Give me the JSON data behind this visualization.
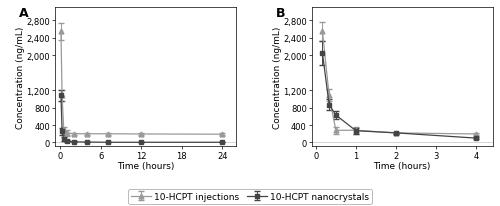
{
  "panel_A_label": "A",
  "panel_B_label": "B",
  "xlabel": "Time (hours)",
  "ylabel": "Concentration (ng/mL)",
  "inj_x_A": [
    0.083,
    0.25,
    0.5,
    1,
    2,
    4,
    7,
    12,
    24
  ],
  "inj_y_A": [
    2550,
    1080,
    280,
    220,
    200,
    200,
    200,
    195,
    190
  ],
  "inj_ye_A": [
    200,
    120,
    80,
    60,
    25,
    25,
    25,
    20,
    20
  ],
  "nano_x_A": [
    0.083,
    0.25,
    0.5,
    1,
    2,
    4,
    7,
    12,
    24
  ],
  "nano_y_A": [
    1080,
    260,
    80,
    30,
    15,
    10,
    5,
    5,
    5
  ],
  "nano_ye_A": [
    120,
    80,
    40,
    20,
    10,
    8,
    5,
    5,
    5
  ],
  "inj_x_B": [
    0.167,
    0.333,
    0.5,
    1,
    2,
    4
  ],
  "inj_y_B": [
    2550,
    1080,
    280,
    280,
    220,
    195
  ],
  "inj_ye_B": [
    220,
    140,
    80,
    80,
    30,
    20
  ],
  "nano_x_B": [
    0.167,
    0.333,
    0.5,
    1,
    2,
    4
  ],
  "nano_y_B": [
    2050,
    870,
    630,
    270,
    220,
    100
  ],
  "nano_ye_B": [
    280,
    130,
    100,
    70,
    30,
    20
  ],
  "yticks": [
    0,
    400,
    800,
    1200,
    2000,
    2400,
    2800
  ],
  "ylim": [
    -80,
    3100
  ],
  "xticks_A": [
    0,
    6,
    12,
    18,
    24
  ],
  "xlim_A": [
    -0.8,
    26
  ],
  "xticks_B": [
    0,
    1,
    2,
    3,
    4
  ],
  "xlim_B": [
    -0.1,
    4.4
  ],
  "inj_color": "#999999",
  "nano_color": "#444444",
  "inj_label": "10-HCPT injections",
  "nano_label": "10-HCPT nanocrystals",
  "marker_inj": "^",
  "marker_nano": "s",
  "linewidth": 0.9,
  "markersize": 3.5,
  "capsize": 2,
  "elinewidth": 0.7,
  "fontsize_label": 6.5,
  "fontsize_tick": 6.0,
  "fontsize_panel": 9,
  "fontsize_legend": 6.5
}
